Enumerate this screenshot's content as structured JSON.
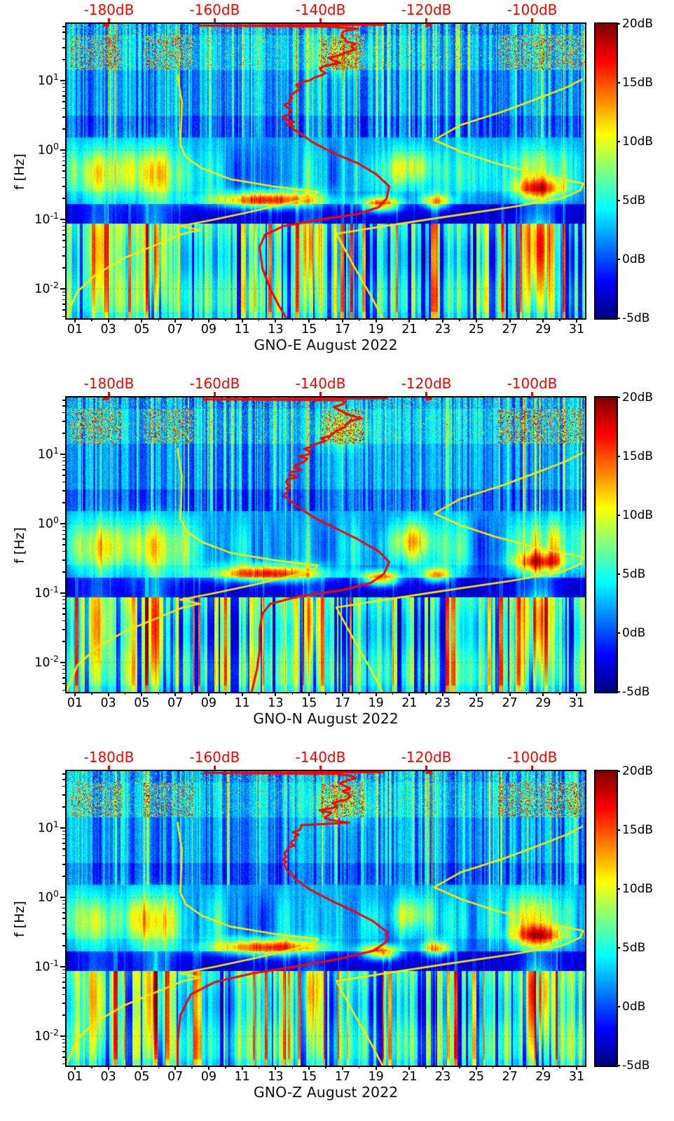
{
  "chart_data": {
    "type": "heatmap",
    "subtype": "spectrogram-triptych",
    "colormap": "jet",
    "axes": {
      "day_min": 1,
      "day_max": 32,
      "log_f_min": -2.4242,
      "log_f_max": 1.8182,
      "top_db_min": -188,
      "top_db_max": -90,
      "color_db_min": -5,
      "color_db_max": 20
    },
    "x_axis": {
      "tick_labels": [
        "01",
        "03",
        "05",
        "07",
        "09",
        "11",
        "13",
        "15",
        "17",
        "19",
        "21",
        "23",
        "25",
        "27",
        "29",
        "31"
      ]
    },
    "y_axis": {
      "label": "f [Hz]",
      "scale": "log",
      "base": "10",
      "major_ticks": [
        {
          "exp": "1"
        },
        {
          "exp": "0"
        },
        {
          "exp": "-1"
        },
        {
          "exp": "-2"
        }
      ]
    },
    "top_axis": {
      "color": "#ff0000",
      "ticks": [
        {
          "db": -180,
          "label": "-180dB"
        },
        {
          "db": -160,
          "label": "-160dB"
        },
        {
          "db": -140,
          "label": "-140dB"
        },
        {
          "db": -120,
          "label": "-120dB"
        },
        {
          "db": -100,
          "label": "-100dB"
        }
      ]
    },
    "colorbar": {
      "ticks": [
        {
          "v": 20,
          "label": "20dB"
        },
        {
          "v": 15,
          "label": "15dB"
        },
        {
          "v": 10,
          "label": "10dB"
        },
        {
          "v": 5,
          "label": "5dB"
        },
        {
          "v": 0,
          "label": "0dB"
        },
        {
          "v": -5,
          "label": "-5dB"
        }
      ]
    },
    "overlays": {
      "yellow_color": "#ffe600",
      "red_color": "#ff0000",
      "jitter": {
        "f_min": 2,
        "f_max": 60
      },
      "nlnm": [
        [
          0.0038,
          -188
        ],
        [
          0.0055,
          -187.2
        ],
        [
          0.009,
          -186
        ],
        [
          0.016,
          -182.5
        ],
        [
          0.028,
          -177
        ],
        [
          0.045,
          -170.5
        ],
        [
          0.062,
          -166
        ],
        [
          0.07,
          -162.8
        ],
        [
          0.08,
          -166.5
        ],
        [
          0.1,
          -160
        ],
        [
          0.13,
          -153
        ],
        [
          0.17,
          -146.5
        ],
        [
          0.21,
          -141.5
        ],
        [
          0.25,
          -140.5
        ],
        [
          0.3,
          -149
        ],
        [
          0.38,
          -157
        ],
        [
          0.55,
          -162.5
        ],
        [
          0.8,
          -165.5
        ],
        [
          1.2,
          -166.5
        ],
        [
          2.5,
          -166.3
        ],
        [
          5,
          -166.2
        ],
        [
          9,
          -166.8
        ],
        [
          12,
          -167
        ]
      ],
      "nhnm": [
        [
          0.0038,
          -128.3
        ],
        [
          0.008,
          -130.5
        ],
        [
          0.02,
          -133.5
        ],
        [
          0.045,
          -136
        ],
        [
          0.062,
          -137
        ],
        [
          0.08,
          -128
        ],
        [
          0.11,
          -116
        ],
        [
          0.15,
          -104
        ],
        [
          0.2,
          -94.5
        ],
        [
          0.26,
          -91
        ],
        [
          0.33,
          -90.3
        ],
        [
          0.45,
          -99
        ],
        [
          0.65,
          -107
        ],
        [
          0.95,
          -113.5
        ],
        [
          1.4,
          -118.5
        ],
        [
          2.3,
          -113.5
        ],
        [
          3.6,
          -105.5
        ],
        [
          5.5,
          -99
        ],
        [
          8,
          -93.5
        ],
        [
          10.5,
          -90.5
        ]
      ]
    },
    "texture": {
      "blobs": [
        [
          3.0,
          0.9,
          -0.42,
          0.28,
          5
        ],
        [
          6.4,
          1.3,
          -0.4,
          0.3,
          6.5
        ],
        [
          4.5,
          2.5,
          -0.25,
          0.22,
          3.5
        ],
        [
          13.0,
          2.3,
          -0.72,
          0.085,
          16
        ],
        [
          19.8,
          0.8,
          -0.79,
          0.075,
          15
        ],
        [
          23.1,
          0.6,
          -0.74,
          0.08,
          12
        ],
        [
          29.3,
          1.1,
          -0.56,
          0.11,
          13
        ],
        [
          21.6,
          0.9,
          -0.22,
          0.18,
          6
        ],
        [
          21.0,
          1.6,
          -0.35,
          0.2,
          3
        ],
        [
          29.4,
          1.6,
          -0.25,
          0.22,
          6
        ],
        [
          2.9,
          0.7,
          -1.5,
          0.35,
          7
        ],
        [
          6.3,
          0.55,
          -1.5,
          0.4,
          9
        ],
        [
          15.6,
          0.5,
          -1.45,
          0.35,
          8
        ],
        [
          29.2,
          0.7,
          -1.45,
          0.4,
          11
        ],
        [
          17.5,
          1.0,
          1.35,
          0.18,
          5
        ]
      ],
      "hot_speckle_day_ranges": [
        [
          1.3,
          4.3
        ],
        [
          5.6,
          8.6
        ],
        [
          16.3,
          18.8
        ],
        [
          26.8,
          31.9
        ]
      ]
    },
    "panels": [
      {
        "id": "GNO-E",
        "title": "GNO-E August 2022",
        "seed": 101,
        "top_marks": [
          -180.6,
          -119.6
        ],
        "red_psd": [
          [
            0.0038,
            -146.5
          ],
          [
            0.006,
            -148
          ],
          [
            0.01,
            -149.5
          ],
          [
            0.02,
            -151
          ],
          [
            0.04,
            -151.5
          ],
          [
            0.06,
            -150.5
          ],
          [
            0.08,
            -147
          ],
          [
            0.1,
            -140
          ],
          [
            0.12,
            -133
          ],
          [
            0.15,
            -129
          ],
          [
            0.2,
            -127.5
          ],
          [
            0.3,
            -127
          ],
          [
            0.45,
            -129.5
          ],
          [
            0.65,
            -133
          ],
          [
            0.9,
            -137.5
          ],
          [
            1.3,
            -141.5
          ],
          [
            2,
            -145
          ],
          [
            3,
            -146.5
          ],
          [
            4.5,
            -146
          ],
          [
            6,
            -145
          ],
          [
            8,
            -144
          ],
          [
            11,
            -142
          ],
          [
            14,
            -140
          ],
          [
            18,
            -138
          ],
          [
            23,
            -136
          ],
          [
            28,
            -134
          ],
          [
            34,
            -134.5
          ],
          [
            40,
            -135.5
          ],
          [
            48,
            -136
          ],
          [
            56,
            -135
          ],
          [
            60,
            -137
          ],
          [
            62,
            -163
          ],
          [
            64,
            -128
          ]
        ]
      },
      {
        "id": "GNO-N",
        "title": "GNO-N August 2022",
        "seed": 202,
        "top_marks": [
          -180.6,
          -119.6
        ],
        "red_psd": [
          [
            0.0038,
            -153
          ],
          [
            0.008,
            -152
          ],
          [
            0.015,
            -151.5
          ],
          [
            0.03,
            -151.5
          ],
          [
            0.05,
            -151
          ],
          [
            0.07,
            -149.5
          ],
          [
            0.09,
            -144
          ],
          [
            0.11,
            -136
          ],
          [
            0.14,
            -130.5
          ],
          [
            0.19,
            -128
          ],
          [
            0.28,
            -127
          ],
          [
            0.4,
            -129
          ],
          [
            0.6,
            -133
          ],
          [
            0.85,
            -137
          ],
          [
            1.2,
            -141
          ],
          [
            1.8,
            -144.5
          ],
          [
            2.6,
            -146.5
          ],
          [
            4,
            -146
          ],
          [
            5.5,
            -145
          ],
          [
            7.5,
            -144
          ],
          [
            10,
            -142.5
          ],
          [
            13,
            -140.5
          ],
          [
            17,
            -138.5
          ],
          [
            22,
            -136.5
          ],
          [
            27,
            -134.5
          ],
          [
            33,
            -134
          ],
          [
            40,
            -135
          ],
          [
            48,
            -136
          ],
          [
            56,
            -135
          ],
          [
            60,
            -137
          ],
          [
            62,
            -162
          ],
          [
            64,
            -127.5
          ]
        ]
      },
      {
        "id": "GNO-Z",
        "title": "GNO-Z August 2022",
        "seed": 303,
        "top_marks": [
          -119.6
        ],
        "red_psd": [
          [
            0.0038,
            -167
          ],
          [
            0.008,
            -167
          ],
          [
            0.02,
            -166.5
          ],
          [
            0.04,
            -164.5
          ],
          [
            0.06,
            -160
          ],
          [
            0.08,
            -153
          ],
          [
            0.1,
            -145
          ],
          [
            0.13,
            -136.5
          ],
          [
            0.17,
            -130
          ],
          [
            0.23,
            -127.5
          ],
          [
            0.32,
            -127.5
          ],
          [
            0.45,
            -130
          ],
          [
            0.65,
            -134
          ],
          [
            0.9,
            -138
          ],
          [
            1.3,
            -142
          ],
          [
            2,
            -145.5
          ],
          [
            3,
            -147
          ],
          [
            4.5,
            -146.5
          ],
          [
            6,
            -145.5
          ],
          [
            8,
            -144.5
          ],
          [
            11,
            -143
          ],
          [
            14,
            -141
          ],
          [
            18,
            -139
          ],
          [
            23,
            -136.5
          ],
          [
            28,
            -134.5
          ],
          [
            34,
            -134.5
          ],
          [
            40,
            -135.5
          ],
          [
            48,
            -136
          ],
          [
            56,
            -135
          ],
          [
            60,
            -137
          ],
          [
            62,
            -162
          ],
          [
            64,
            -128
          ]
        ]
      }
    ]
  }
}
